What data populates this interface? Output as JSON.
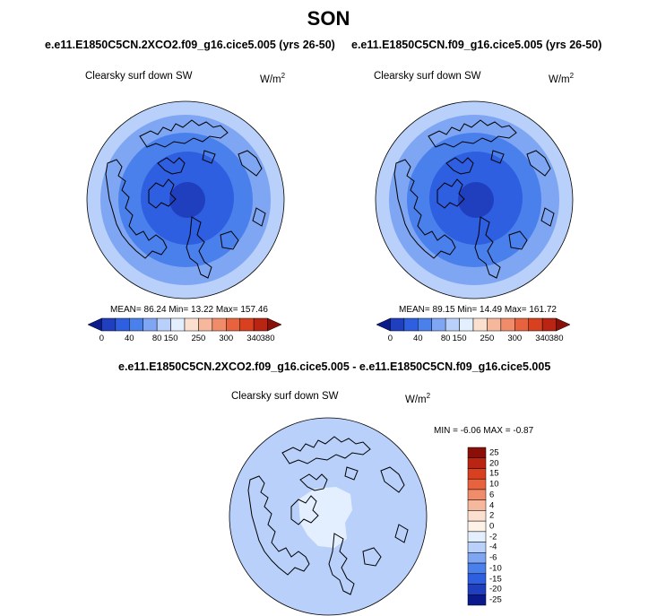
{
  "figure": {
    "title": "SON"
  },
  "panels": [
    {
      "case": "e.e11.E1850C5CN.2XCO2.f09_g16.cice5.005 (yrs 26-50)",
      "variable": "Clearsky surf down SW",
      "units_base": "W/m",
      "units_exp": "2",
      "stats": "MEAN=  86.24  Min=  13.22  Max= 157.46",
      "colorbar_labels": [
        "0",
        "40",
        "80",
        "150",
        "250",
        "300",
        "340",
        "380"
      ],
      "colorbar_colors": [
        "#0a1a8c",
        "#1f3fbf",
        "#2d5fe0",
        "#4a80ec",
        "#7fa6f3",
        "#b8d0fa",
        "#e3efff",
        "#fbe0d0",
        "#f6b89c",
        "#f08c6a",
        "#e8623e",
        "#d9401f",
        "#b92512",
        "#8a0f08"
      ]
    },
    {
      "case": "e.e11.E1850C5CN.f09_g16.cice5.005 (yrs 26-50)",
      "variable": "Clearsky surf down SW",
      "units_base": "W/m",
      "units_exp": "2",
      "stats": "MEAN=  89.15  Min=  14.49  Max= 161.72",
      "colorbar_labels": [
        "0",
        "40",
        "80",
        "150",
        "250",
        "300",
        "340",
        "380"
      ],
      "colorbar_colors": [
        "#0a1a8c",
        "#1f3fbf",
        "#2d5fe0",
        "#4a80ec",
        "#7fa6f3",
        "#b8d0fa",
        "#e3efff",
        "#fbe0d0",
        "#f6b89c",
        "#f08c6a",
        "#e8623e",
        "#d9401f",
        "#b92512",
        "#8a0f08"
      ]
    }
  ],
  "difference": {
    "case": "e.e11.E1850C5CN.2XCO2.f09_g16.cice5.005 - e.e11.E1850C5CN.f09_g16.cice5.005",
    "variable": "Clearsky surf down SW",
    "units_base": "W/m",
    "units_exp": "2",
    "stats": "MIN =  -6.06 MAX =  -0.87",
    "colorbar_labels": [
      "25",
      "20",
      "15",
      "10",
      "6",
      "4",
      "2",
      "0",
      "-2",
      "-4",
      "-6",
      "-10",
      "-15",
      "-20",
      "-25"
    ],
    "colorbar_colors": [
      "#8a0f08",
      "#b92512",
      "#d9401f",
      "#e8623e",
      "#f08c6a",
      "#f6b89c",
      "#fbe0d0",
      "#fdf1e8",
      "#e3efff",
      "#b8d0fa",
      "#7fa6f3",
      "#4a80ec",
      "#2d5fe0",
      "#1f3fbf",
      "#0a1a8c"
    ]
  },
  "map_colors": {
    "ring_outer": "#b8d0fa",
    "ring_2": "#7fa6f3",
    "ring_3": "#4a80ec",
    "ring_4": "#2d5fe0",
    "ring_core": "#1f3fbf",
    "diff_base": "#b8d0fa",
    "diff_light": "#e3efff",
    "coast": "#000000"
  }
}
